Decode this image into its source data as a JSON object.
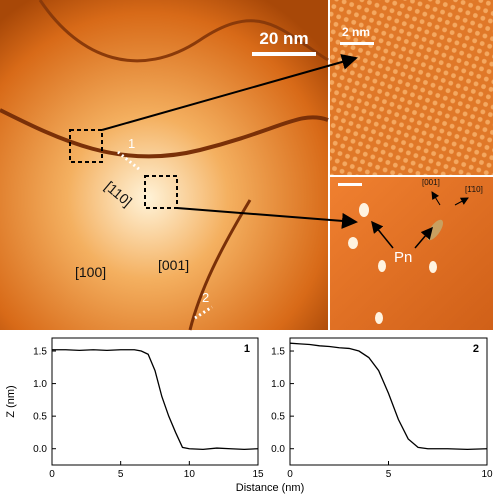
{
  "image_labels": {
    "scale_big": "20 nm",
    "scale_small": "2 nm",
    "site1": "1",
    "site2": "2",
    "dir110": "[110]",
    "dir100": "[100]",
    "dir001": "[001]",
    "pn": "Pn",
    "inset001": "[001]",
    "inset110": "[1̄10]"
  },
  "x_label": "Distance (nm)",
  "chart_data": [
    {
      "type": "line",
      "title": "1",
      "y_label": "Z (nm)",
      "x": [
        0,
        1,
        2,
        3,
        4,
        5,
        6,
        6.5,
        7,
        7.5,
        8,
        8.5,
        9,
        9.5,
        10,
        11,
        12,
        13,
        14,
        15
      ],
      "series": [
        {
          "color": "#000000",
          "values": [
            1.52,
            1.52,
            1.51,
            1.52,
            1.51,
            1.52,
            1.52,
            1.5,
            1.45,
            1.2,
            0.8,
            0.5,
            0.25,
            0.02,
            0,
            -0.01,
            0.01,
            0,
            -0.01,
            0
          ]
        }
      ],
      "xlim": [
        0,
        15
      ],
      "xticks": [
        0,
        5,
        10,
        15
      ],
      "ylim": [
        -0.25,
        1.7
      ],
      "yticks": [
        {
          "value": 0,
          "label": "0.0"
        },
        0.5,
        {
          "value": 1,
          "label": "1.0"
        },
        1.5
      ]
    },
    {
      "type": "line",
      "title": "2",
      "x": [
        0,
        0.5,
        1,
        1.5,
        2,
        2.5,
        3,
        3.5,
        4,
        4.5,
        5,
        5.5,
        6,
        6.5,
        7,
        8,
        9,
        10
      ],
      "series": [
        {
          "color": "#000000",
          "values": [
            1.62,
            1.61,
            1.6,
            1.58,
            1.57,
            1.55,
            1.54,
            1.5,
            1.4,
            1.2,
            0.85,
            0.45,
            0.15,
            0.02,
            0,
            0,
            -0.01,
            0
          ]
        }
      ],
      "xlim": [
        0,
        10
      ],
      "xticks": [
        0,
        5,
        10
      ],
      "ylim": [
        -0.25,
        1.7
      ],
      "yticks": [
        {
          "value": 0,
          "label": "0.0"
        },
        0.5,
        {
          "value": 1,
          "label": "1.0"
        },
        1.5
      ]
    }
  ]
}
